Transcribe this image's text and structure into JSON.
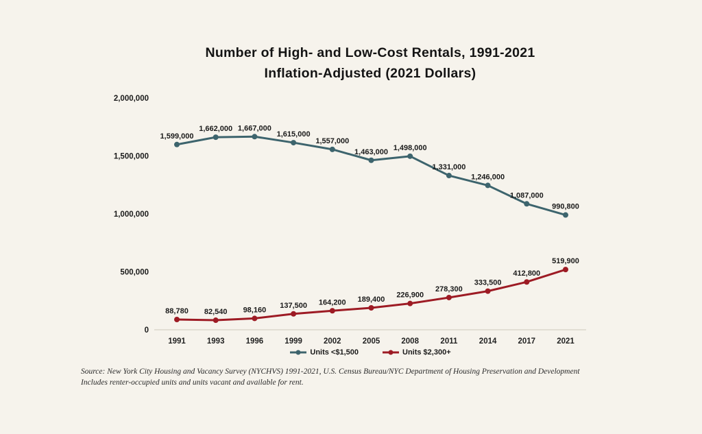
{
  "title": {
    "line1": "Number of High- and Low-Cost Rentals, 1991-2021",
    "line2": "Inflation-Adjusted (2021 Dollars)"
  },
  "source": {
    "line1": "Source: New York City Housing and Vacancy Survey (NYCHVS) 1991-2021, U.S. Census Bureau/NYC Department of Housing Preservation and Development",
    "line2": "Includes renter-occupied units and units vacant and available for rent."
  },
  "colors": {
    "background": "#f6f3ec",
    "low_cost_line": "#3d646d",
    "high_cost_line": "#9d1b24",
    "axis_line": "#dcd8cb",
    "label_text": "#1a1a1a"
  },
  "chart_data": {
    "type": "line",
    "categories": [
      "1991",
      "1993",
      "1996",
      "1999",
      "2002",
      "2005",
      "2008",
      "2011",
      "2014",
      "2017",
      "2021"
    ],
    "series": [
      {
        "key": "low-cost-rentals",
        "name": "Units <$1,500",
        "color": "#3d646d",
        "values": [
          1599000,
          1662000,
          1667000,
          1615000,
          1557000,
          1463000,
          1498000,
          1331000,
          1246000,
          1087000,
          990800
        ],
        "labels": [
          "1,599,000",
          "1,662,000",
          "1,667,000",
          "1,615,000",
          "1,557,000",
          "1,463,000",
          "1,498,000",
          "1,331,000",
          "1,246,000",
          "1,087,000",
          "990,800"
        ]
      },
      {
        "key": "high-cost-rentals",
        "name": "Units $2,300+",
        "color": "#9d1b24",
        "values": [
          88780,
          82540,
          98160,
          137500,
          164200,
          189400,
          226900,
          278300,
          333500,
          412800,
          519900
        ],
        "labels": [
          "88,780",
          "82,540",
          "98,160",
          "137,500",
          "164,200",
          "189,400",
          "226,900",
          "278,300",
          "333,500",
          "412,800",
          "519,900"
        ]
      }
    ],
    "y_ticks": [
      {
        "value": 2000000,
        "label": "2,000,000"
      },
      {
        "value": 1500000,
        "label": "1,500,000"
      },
      {
        "value": 1000000,
        "label": "1,000,000"
      },
      {
        "value": 500000,
        "label": "500,000"
      },
      {
        "value": 0,
        "label": "0"
      }
    ],
    "ylim": [
      0,
      2000000
    ],
    "grid": false,
    "legend_position": "bottom"
  }
}
